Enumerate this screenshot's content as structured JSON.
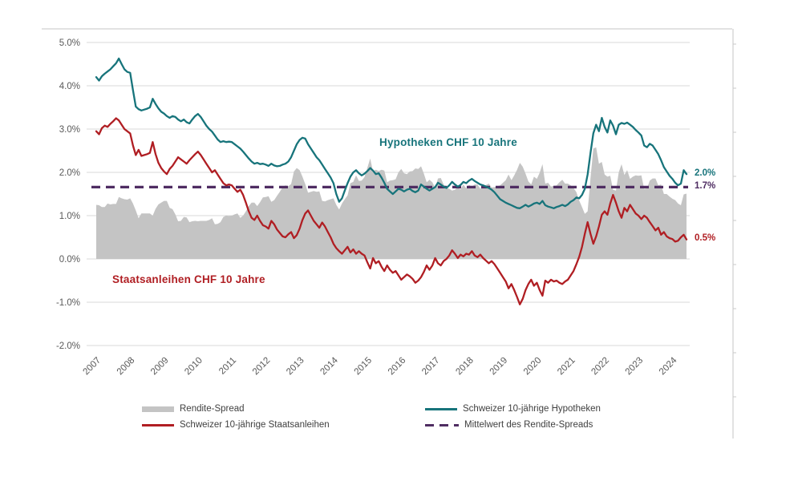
{
  "colors": {
    "mortgage": "#17747b",
    "bond": "#b01e23",
    "mean": "#4f2d62",
    "spread_fill": "#c4c4c4",
    "grid": "#d9d9d9",
    "axis_text": "#595959",
    "frame": "#d9d9d9",
    "background": "#ffffff"
  },
  "annotations": {
    "mortgage_label": "Hypotheken CHF 10 Jahre",
    "bond_label": "Staatsanleihen CHF 10 Jahre"
  },
  "end_labels": {
    "mortgage": "2.0%",
    "mean": "1.7%",
    "bond": "0.5%"
  },
  "legend": {
    "spread": "Rendite-Spread",
    "bond": "Schweizer 10-jährige Staatsanleihen",
    "mortgage": "Schweizer 10-jährige Hypotheken",
    "mean": "Mittelwert des Rendite-Spreads"
  },
  "chart_data": {
    "type": "line",
    "title": "",
    "xlabel": "",
    "ylabel": "",
    "x_tick_labels": [
      "2007",
      "2008",
      "2009",
      "2010",
      "2011",
      "2012",
      "2013",
      "2014",
      "2015",
      "2016",
      "2017",
      "2018",
      "2019",
      "2020",
      "2021",
      "2022",
      "2023",
      "2024"
    ],
    "y_tick_labels": [
      "5.0%",
      "4.0%",
      "3.0%",
      "2.0%",
      "1.0%",
      "0.0%",
      "-1.0%",
      "-2.0%"
    ],
    "y_tick_values": [
      5,
      4,
      3,
      2,
      1,
      0,
      -1,
      -2
    ],
    "ylim": [
      -2.0,
      5.0
    ],
    "grid": true,
    "legend_position": "bottom",
    "start_year": 2007,
    "points_per_year": 12,
    "mean_spread": {
      "label": "1.7%",
      "value": 1.66
    },
    "series": [
      {
        "name": "Schweizer 10-jährige Hypotheken",
        "color_key": "mortgage",
        "values": [
          4.2,
          4.12,
          4.22,
          4.28,
          4.33,
          4.38,
          4.45,
          4.52,
          4.63,
          4.5,
          4.38,
          4.32,
          4.3,
          3.9,
          3.52,
          3.46,
          3.43,
          3.45,
          3.47,
          3.5,
          3.7,
          3.58,
          3.48,
          3.4,
          3.36,
          3.3,
          3.26,
          3.3,
          3.28,
          3.22,
          3.18,
          3.22,
          3.16,
          3.13,
          3.22,
          3.3,
          3.35,
          3.28,
          3.18,
          3.08,
          3.0,
          2.94,
          2.85,
          2.76,
          2.7,
          2.72,
          2.7,
          2.71,
          2.7,
          2.65,
          2.6,
          2.55,
          2.48,
          2.4,
          2.32,
          2.25,
          2.2,
          2.22,
          2.19,
          2.2,
          2.18,
          2.15,
          2.2,
          2.16,
          2.14,
          2.15,
          2.18,
          2.2,
          2.25,
          2.35,
          2.5,
          2.65,
          2.75,
          2.8,
          2.78,
          2.65,
          2.55,
          2.45,
          2.35,
          2.28,
          2.18,
          2.08,
          1.98,
          1.88,
          1.75,
          1.5,
          1.32,
          1.4,
          1.58,
          1.75,
          1.9,
          2.0,
          2.05,
          1.98,
          1.93,
          1.97,
          2.03,
          2.1,
          2.04,
          1.96,
          1.98,
          1.88,
          1.76,
          1.62,
          1.56,
          1.5,
          1.56,
          1.62,
          1.6,
          1.56,
          1.6,
          1.62,
          1.57,
          1.54,
          1.58,
          1.72,
          1.67,
          1.62,
          1.58,
          1.62,
          1.66,
          1.76,
          1.72,
          1.67,
          1.64,
          1.7,
          1.78,
          1.72,
          1.67,
          1.71,
          1.78,
          1.75,
          1.81,
          1.85,
          1.8,
          1.76,
          1.72,
          1.7,
          1.67,
          1.64,
          1.6,
          1.54,
          1.46,
          1.38,
          1.34,
          1.3,
          1.27,
          1.24,
          1.21,
          1.18,
          1.17,
          1.21,
          1.25,
          1.21,
          1.24,
          1.28,
          1.3,
          1.27,
          1.34,
          1.24,
          1.21,
          1.19,
          1.17,
          1.2,
          1.22,
          1.25,
          1.22,
          1.26,
          1.32,
          1.36,
          1.42,
          1.4,
          1.48,
          1.62,
          1.95,
          2.45,
          2.9,
          3.1,
          2.95,
          3.26,
          3.05,
          2.92,
          3.2,
          3.08,
          2.88,
          3.1,
          3.14,
          3.12,
          3.15,
          3.1,
          3.05,
          2.98,
          2.92,
          2.85,
          2.62,
          2.58,
          2.66,
          2.62,
          2.52,
          2.42,
          2.28,
          2.12,
          2.02,
          1.92,
          1.85,
          1.76,
          1.7,
          1.74,
          2.05,
          1.96
        ]
      },
      {
        "name": "Schweizer 10-jährige Staatsanleihen",
        "color_key": "bond",
        "values": [
          2.95,
          2.88,
          3.02,
          3.08,
          3.05,
          3.12,
          3.18,
          3.25,
          3.2,
          3.1,
          3.0,
          2.95,
          2.9,
          2.62,
          2.4,
          2.52,
          2.38,
          2.4,
          2.42,
          2.45,
          2.7,
          2.42,
          2.22,
          2.1,
          2.02,
          1.96,
          2.08,
          2.15,
          2.25,
          2.35,
          2.3,
          2.25,
          2.2,
          2.28,
          2.35,
          2.42,
          2.48,
          2.4,
          2.3,
          2.2,
          2.1,
          2.0,
          2.05,
          1.95,
          1.85,
          1.75,
          1.7,
          1.72,
          1.7,
          1.62,
          1.55,
          1.6,
          1.48,
          1.3,
          1.1,
          0.95,
          0.9,
          1.0,
          0.88,
          0.78,
          0.75,
          0.7,
          0.88,
          0.8,
          0.68,
          0.6,
          0.52,
          0.5,
          0.57,
          0.62,
          0.48,
          0.55,
          0.7,
          0.9,
          1.05,
          1.12,
          1.0,
          0.88,
          0.8,
          0.72,
          0.84,
          0.75,
          0.62,
          0.5,
          0.35,
          0.25,
          0.18,
          0.12,
          0.2,
          0.28,
          0.15,
          0.22,
          0.12,
          0.18,
          0.12,
          0.08,
          -0.08,
          -0.22,
          0.02,
          -0.1,
          -0.05,
          -0.18,
          -0.28,
          -0.15,
          -0.25,
          -0.32,
          -0.28,
          -0.38,
          -0.48,
          -0.42,
          -0.36,
          -0.4,
          -0.46,
          -0.55,
          -0.5,
          -0.42,
          -0.3,
          -0.15,
          -0.25,
          -0.15,
          0.02,
          -0.1,
          -0.15,
          -0.05,
          0.0,
          0.08,
          0.2,
          0.12,
          0.02,
          0.1,
          0.06,
          0.12,
          0.1,
          0.18,
          0.08,
          0.04,
          0.1,
          0.02,
          -0.04,
          -0.1,
          -0.05,
          -0.12,
          -0.22,
          -0.32,
          -0.42,
          -0.52,
          -0.68,
          -0.58,
          -0.72,
          -0.88,
          -1.05,
          -0.92,
          -0.72,
          -0.58,
          -0.48,
          -0.62,
          -0.55,
          -0.72,
          -0.85,
          -0.5,
          -0.55,
          -0.48,
          -0.52,
          -0.5,
          -0.55,
          -0.58,
          -0.52,
          -0.48,
          -0.38,
          -0.28,
          -0.12,
          0.05,
          0.28,
          0.58,
          0.85,
          0.58,
          0.35,
          0.52,
          0.75,
          1.02,
          1.1,
          1.02,
          1.28,
          1.48,
          1.3,
          1.1,
          0.95,
          1.18,
          1.1,
          1.25,
          1.15,
          1.05,
          1.0,
          0.92,
          1.0,
          0.95,
          0.85,
          0.76,
          0.66,
          0.72,
          0.56,
          0.62,
          0.52,
          0.48,
          0.46,
          0.4,
          0.42,
          0.5,
          0.56,
          0.45
        ]
      }
    ],
    "spread_series": {
      "name": "Rendite-Spread",
      "definition": "Hypotheken minus Staatsanleihen",
      "color_key": "spread_fill"
    }
  }
}
